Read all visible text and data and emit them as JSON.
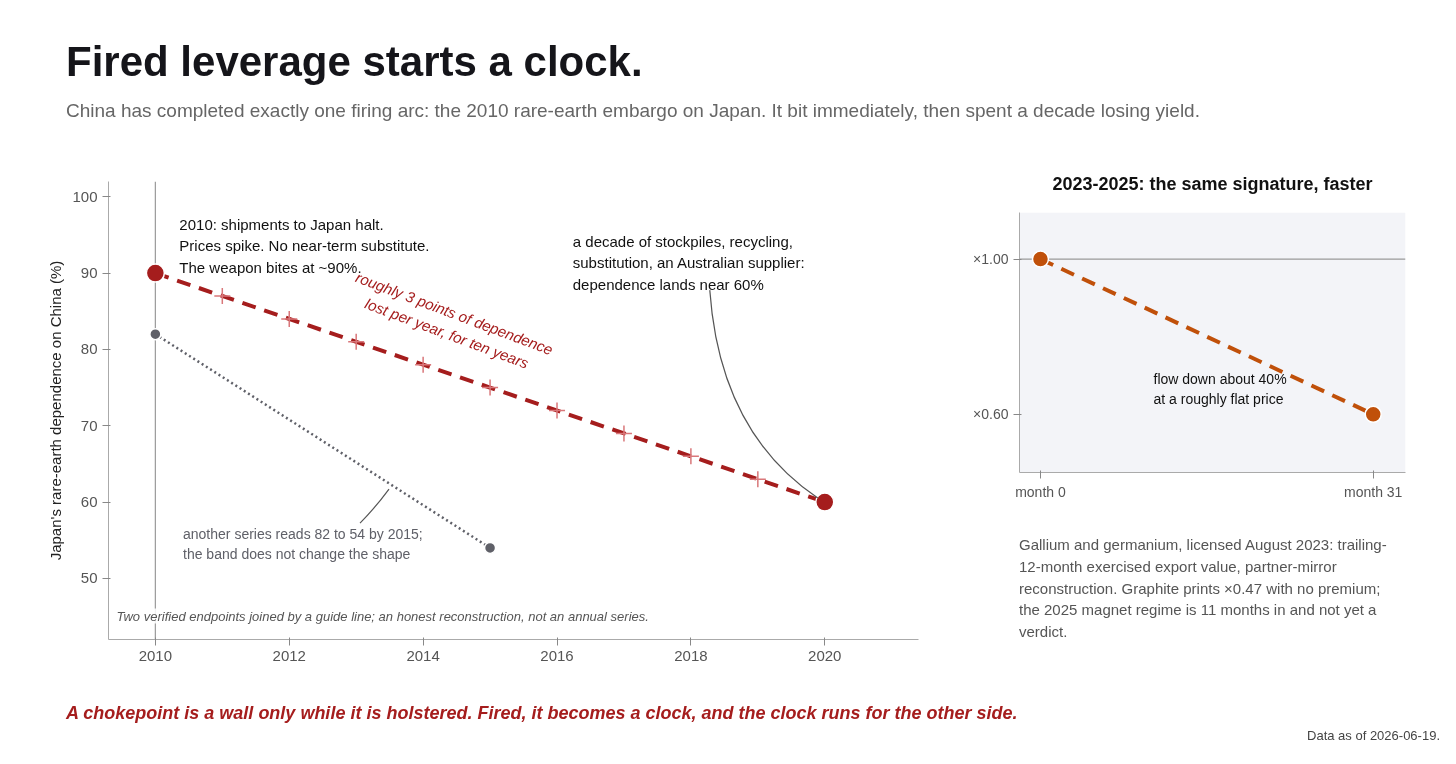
{
  "chart_data": [
    {
      "type": "line",
      "title": "Fired leverage starts a clock.",
      "subtitle": "China has completed exactly one firing arc: the 2010 rare-earth embargo on Japan. It bit immediately, then spent a decade losing yield.",
      "ylabel": "Japan's rare-earth dependence on China (%)",
      "xlim": [
        2009.3,
        2021.4
      ],
      "xticks": [
        2010,
        2012,
        2014,
        2016,
        2018,
        2020
      ],
      "ylim": [
        42,
        102
      ],
      "yticks": [
        50,
        60,
        70,
        80,
        90,
        100
      ],
      "series": [
        {
          "color": "#a51d1d",
          "x": [
            2010,
            2020
          ],
          "values": [
            90,
            60
          ],
          "line_style": "dashed",
          "marker": "circle"
        },
        {
          "type": "scatter",
          "color": "#d9777a",
          "x": [
            2011,
            2012,
            2013,
            2014,
            2015,
            2016,
            2017,
            2018,
            2019
          ],
          "values": [
            87,
            84,
            81,
            78,
            75,
            72,
            69,
            66,
            63
          ],
          "marker": "cross"
        },
        {
          "color": "#5f6068",
          "x": [
            2010,
            2015
          ],
          "values": [
            82,
            54
          ],
          "line_style": "dotted",
          "marker": "circle"
        }
      ],
      "ref_lines": [
        {
          "axis": "x",
          "value": 2010,
          "color": "#9a9a9a"
        }
      ],
      "annotations": [
        {
          "text": "2010: shipments to Japan halt.\nPrices spike. No near-term substitute.\nThe weapon bites at ~90%.",
          "x": 2010,
          "y": 90
        },
        {
          "text": "roughly 3 points of dependence\nlost per year, for ten years",
          "x": 2013.5,
          "y": 79.5
        },
        {
          "text": "a decade of stockpiles, recycling,\nsubstitution, an Australian supplier:\ndependence lands near 60%",
          "x": 2020,
          "y": 60
        },
        {
          "text": "another series reads 82 to 54 by 2015;\nthe band does not change the shape",
          "x": 2013.55,
          "y": 62.1
        },
        "Two verified endpoints joined by a guide line; an honest reconstruction, not an annual series.",
        "A chokepoint is a wall only while it is holstered. Fired, it becomes a clock, and the clock runs for the other side.",
        "Data as of 2026-06-19."
      ]
    },
    {
      "type": "line",
      "title": "2023-2025: the same signature, faster",
      "categories": [
        "month 0",
        "month 31"
      ],
      "ylim": [
        0.45,
        1.12
      ],
      "yticks": [
        {
          "value": 1.0,
          "label": "×1.00"
        },
        {
          "value": 0.6,
          "label": "×0.60"
        }
      ],
      "series": [
        {
          "color": "#c0500a",
          "values": [
            1.0,
            0.6
          ],
          "line_style": "dashed",
          "marker": "circle"
        }
      ],
      "ref_lines": [
        {
          "axis": "y",
          "value": 1.0,
          "color": "#9a9a9a"
        }
      ],
      "bands": [
        {
          "axis": "y",
          "from": 0.45,
          "to": 1.12,
          "color": "#f3f4f8"
        }
      ],
      "annotations": [
        "flow down about 40%\nat a roughly flat price",
        "Gallium and germanium, licensed August 2023: trailing-12-month exercised export value, partner-mirror reconstruction. Graphite prints ×0.47 with no premium; the 2025 magnet regime is 11 months in and not yet a verdict."
      ]
    }
  ]
}
